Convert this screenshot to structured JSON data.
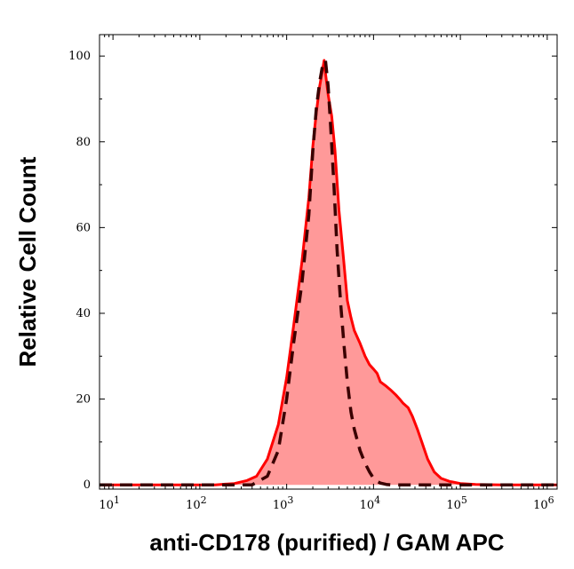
{
  "chart_data": {
    "type": "area",
    "xlabel": "anti-CD178 (purified) / GAM APC",
    "ylabel": "Relative Cell Count",
    "xscale": "log",
    "xlim": [
      7,
      1300000
    ],
    "ylim": [
      -1,
      105
    ],
    "y_ticks": [
      0,
      20,
      40,
      60,
      80,
      100
    ],
    "x_ticks": [
      {
        "value": 10,
        "base": "10",
        "exp": "1"
      },
      {
        "value": 100,
        "base": "10",
        "exp": "2"
      },
      {
        "value": 1000,
        "base": "10",
        "exp": "3"
      },
      {
        "value": 10000,
        "base": "10",
        "exp": "4"
      },
      {
        "value": 100000,
        "base": "10",
        "exp": "5"
      },
      {
        "value": 1000000,
        "base": "10",
        "exp": "6"
      }
    ],
    "series": [
      {
        "style": "filled-solid",
        "line_color": "#ff0000",
        "fill_color": "#ff9999",
        "x": [
          7,
          50,
          150,
          250,
          350,
          450,
          600,
          800,
          1000,
          1200,
          1500,
          1800,
          2000,
          2200,
          2400,
          2600,
          2700,
          2800,
          3000,
          3300,
          3600,
          4000,
          4500,
          5000,
          5500,
          6000,
          7000,
          8000,
          9000,
          10000,
          11000,
          12000,
          14000,
          16000,
          18000,
          20000,
          22000,
          25000,
          28000,
          32000,
          36000,
          42000,
          50000,
          60000,
          75000,
          100000,
          150000,
          300000,
          1300000
        ],
        "y": [
          0,
          0,
          0,
          0.3,
          1,
          2,
          6,
          14,
          25,
          37,
          52,
          67,
          79,
          87,
          93,
          97,
          99,
          96,
          91,
          86,
          78,
          64,
          53,
          43,
          39,
          36,
          33,
          30,
          28,
          27,
          26,
          24,
          23,
          22,
          21,
          20,
          19,
          18,
          16,
          13,
          10,
          6,
          3,
          1.5,
          0.8,
          0.3,
          0.1,
          0,
          0
        ]
      },
      {
        "style": "dashed",
        "line_color": "#3a0000",
        "x": [
          7,
          400,
          600,
          800,
          1000,
          1200,
          1500,
          1800,
          2000,
          2200,
          2400,
          2600,
          2800,
          3000,
          3200,
          3500,
          3800,
          4200,
          4600,
          5000,
          5500,
          6000,
          7000,
          8000,
          9000,
          10000,
          11000,
          12000,
          14000,
          16000,
          20000,
          1300000
        ],
        "y": [
          0,
          0,
          2,
          8,
          20,
          33,
          47,
          63,
          78,
          88,
          94,
          98,
          99,
          93,
          84,
          70,
          55,
          42,
          32,
          24,
          17,
          13,
          8,
          5,
          3,
          1.5,
          0.8,
          0.4,
          0.1,
          0,
          0,
          0
        ]
      }
    ]
  }
}
